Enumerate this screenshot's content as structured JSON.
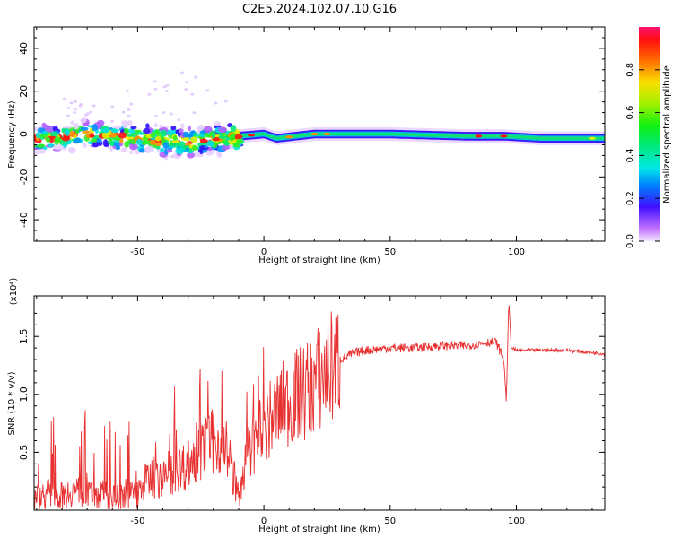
{
  "figure": {
    "title": "C2E5.2024.102.07.10.G16"
  },
  "chart_data": [
    {
      "type": "heatmap",
      "xlabel": "Height of straight line (km)",
      "ylabel": "Frequency (Hz)",
      "xlim": [
        -91,
        135
      ],
      "ylim": [
        -50,
        50
      ],
      "xticks": [
        -50,
        0,
        50,
        100
      ],
      "yticks": [
        -40,
        -20,
        0,
        20,
        40
      ],
      "colorbar": {
        "label": "Normalized spectral amplitude",
        "range": [
          0,
          1
        ],
        "ticks": [
          "0.0",
          "0.2",
          "0.4",
          "0.6",
          "0.8"
        ]
      },
      "ridge": [
        [
          -91,
          -3
        ],
        [
          -70,
          0
        ],
        [
          -50,
          -2
        ],
        [
          -30,
          -4
        ],
        [
          -10,
          -1
        ],
        [
          0,
          0
        ],
        [
          5,
          -2
        ],
        [
          20,
          0
        ],
        [
          50,
          0
        ],
        [
          80,
          -1
        ],
        [
          95,
          -1
        ],
        [
          110,
          -2
        ],
        [
          135,
          -2
        ]
      ],
      "scatter_extent": [
        [
          -91,
          -15
        ],
        [
          -15,
          5
        ]
      ]
    },
    {
      "type": "line",
      "xlabel": "Height of straight line (km)",
      "ylabel": "SNR (10 * v/v)",
      "y_scale_note": "(x10⁴)",
      "xlim": [
        -91,
        135
      ],
      "ylim": [
        0,
        1.85
      ],
      "xticks": [
        -50,
        0,
        50,
        100
      ],
      "yticks": [
        "0.5",
        "1.0",
        "1.5"
      ],
      "color": "#e83030",
      "series": [
        {
          "x": [
            -91,
            -85,
            -80,
            -75,
            -70,
            -65,
            -60,
            -55,
            -50,
            -45,
            -40,
            -35,
            -30,
            -25,
            -20,
            -15,
            -12,
            -10,
            -8,
            -5,
            0,
            5,
            10,
            15,
            20,
            25,
            30,
            35,
            40,
            50,
            60,
            70,
            80,
            88,
            92,
            95,
            96,
            97,
            98,
            100,
            110,
            120,
            135
          ],
          "values": [
            0.1,
            0.15,
            0.12,
            0.18,
            0.12,
            0.15,
            0.1,
            0.12,
            0.15,
            0.3,
            0.25,
            0.35,
            0.4,
            0.5,
            0.6,
            0.55,
            0.3,
            0.1,
            0.35,
            0.55,
            0.7,
            0.85,
            0.95,
            1.0,
            1.1,
            1.2,
            1.3,
            1.35,
            1.38,
            1.4,
            1.4,
            1.42,
            1.42,
            1.45,
            1.45,
            1.3,
            0.95,
            1.8,
            1.4,
            1.38,
            1.38,
            1.38,
            1.35
          ]
        }
      ]
    }
  ]
}
